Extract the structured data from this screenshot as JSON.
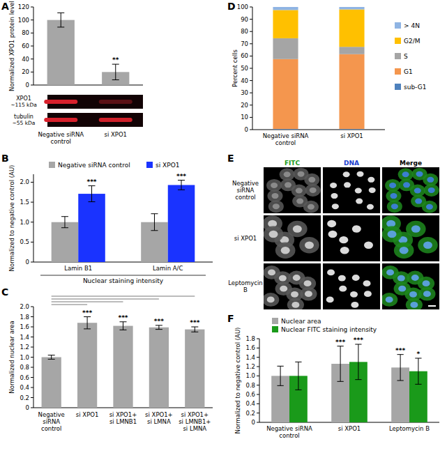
{
  "chart_data": [
    {
      "type": "bar",
      "title": "A",
      "y_label": "Normalized XPO1 protein level",
      "categories": [
        "Negative siRNA control",
        "si XPO1"
      ],
      "values": [
        100,
        20
      ],
      "errors": [
        11,
        12
      ],
      "annotations": [
        null,
        "**"
      ],
      "color": "#a6a6a6",
      "ylim": [
        0,
        120
      ],
      "yticks": [
        0,
        20,
        40,
        60,
        80,
        100,
        120
      ],
      "grid": false
    },
    {
      "type": "bar",
      "title": "B",
      "y_label": "Normalized to negative control (AU)",
      "x_label": "Nuclear staining intensity",
      "categories": [
        "Lamin B1",
        "Lamin A/C"
      ],
      "series": [
        {
          "name": "Negative siRNA control",
          "color": "#a6a6a6",
          "values": [
            1,
            1
          ],
          "errors": [
            0.14,
            0.21
          ]
        },
        {
          "name": "si XPO1",
          "color": "#1a33ff",
          "values": [
            1.71,
            1.93
          ],
          "errors": [
            0.2,
            0.12
          ],
          "annotations": [
            "***",
            "***"
          ]
        }
      ],
      "ylim": [
        0,
        2.2
      ],
      "yticks": [
        0,
        0.5,
        {
          "value": 1,
          "label": "1.0"
        },
        1.5,
        {
          "value": 2,
          "label": "2.0"
        }
      ],
      "legend": "top",
      "grid": false
    },
    {
      "type": "bar",
      "title": "C",
      "y_label": "Normalized nuclear area",
      "categories": [
        "Negative siRNA control",
        "si XPO1",
        "si XPO1+ si LMNB1",
        "si XPO1+ si LMNA",
        "si XPO1+ si LMNB1+ si LMNA"
      ],
      "values": [
        1,
        1.68,
        1.62,
        1.59,
        1.55
      ],
      "errors": [
        0.04,
        0.12,
        0.08,
        0.04,
        0.05
      ],
      "annotations": [
        null,
        "***",
        "***",
        "***",
        "***"
      ],
      "color": "#a6a6a6",
      "ylim": [
        0,
        2
      ],
      "yticks": [
        0,
        0.2,
        0.4,
        0.6,
        0.8,
        {
          "value": 1,
          "label": "1.0"
        },
        1.2,
        1.4,
        1.6,
        1.8,
        {
          "value": 2,
          "label": "2.0"
        }
      ],
      "grid": false
    },
    {
      "type": "bar",
      "title": "D",
      "y_label": "Percent cells",
      "categories": [
        "Negative siRNA control",
        "si XPO1"
      ],
      "stacked": true,
      "series": [
        {
          "name": "sub-G1",
          "color": "#4e81bd",
          "values": [
            0.5,
            0.5
          ]
        },
        {
          "name": "G1",
          "color": "#f4964e",
          "values": [
            57,
            61
          ]
        },
        {
          "name": "S",
          "color": "#a5a5a5",
          "values": [
            17,
            6
          ]
        },
        {
          "name": "G2/M",
          "color": "#ffc000",
          "values": [
            23,
            30.5
          ]
        },
        {
          "name": "> 4N",
          "color": "#8fb4e3",
          "values": [
            2.5,
            2
          ]
        }
      ],
      "ylim": [
        0,
        100
      ],
      "yticks": [
        0,
        10,
        20,
        30,
        40,
        50,
        60,
        70,
        80,
        90,
        100
      ],
      "legend": "right",
      "grid": false
    },
    {
      "type": "bar",
      "title": "F",
      "y_label": "Normalized to negative control (AU)",
      "categories": [
        "Negative siRNA control",
        "si XPO1",
        "Leptomycin B"
      ],
      "series": [
        {
          "name": "Nuclear area",
          "color": "#a6a6a6",
          "values": [
            1,
            1.26,
            1.18
          ],
          "errors": [
            0.21,
            0.38,
            0.28
          ],
          "annotations": [
            null,
            "***",
            "***"
          ]
        },
        {
          "name": "Nuclear FITC staining intensity",
          "color": "#1a9a1a",
          "values": [
            1,
            1.3,
            1.1
          ],
          "errors": [
            0.3,
            0.38,
            0.28
          ],
          "annotations": [
            null,
            "***",
            "*"
          ]
        }
      ],
      "ylim": [
        0,
        1.8
      ],
      "yticks": [
        0,
        0.2,
        0.4,
        0.6,
        0.8,
        {
          "value": 1,
          "label": "1.0"
        },
        1.2,
        1.4,
        1.6,
        1.8
      ],
      "legend": "top-left",
      "grid": false
    }
  ],
  "blot": {
    "bands": [
      {
        "name": "XPO1",
        "size": "~115 kDa"
      },
      {
        "name": "tubulin",
        "size": "~55 kDa"
      }
    ]
  },
  "microscopy": {
    "title": "E",
    "columns": [
      "FITC",
      "DNA",
      "Merge"
    ],
    "rows": [
      "Negative siRNA control",
      "si XPO1",
      "Leptomycin B"
    ]
  }
}
